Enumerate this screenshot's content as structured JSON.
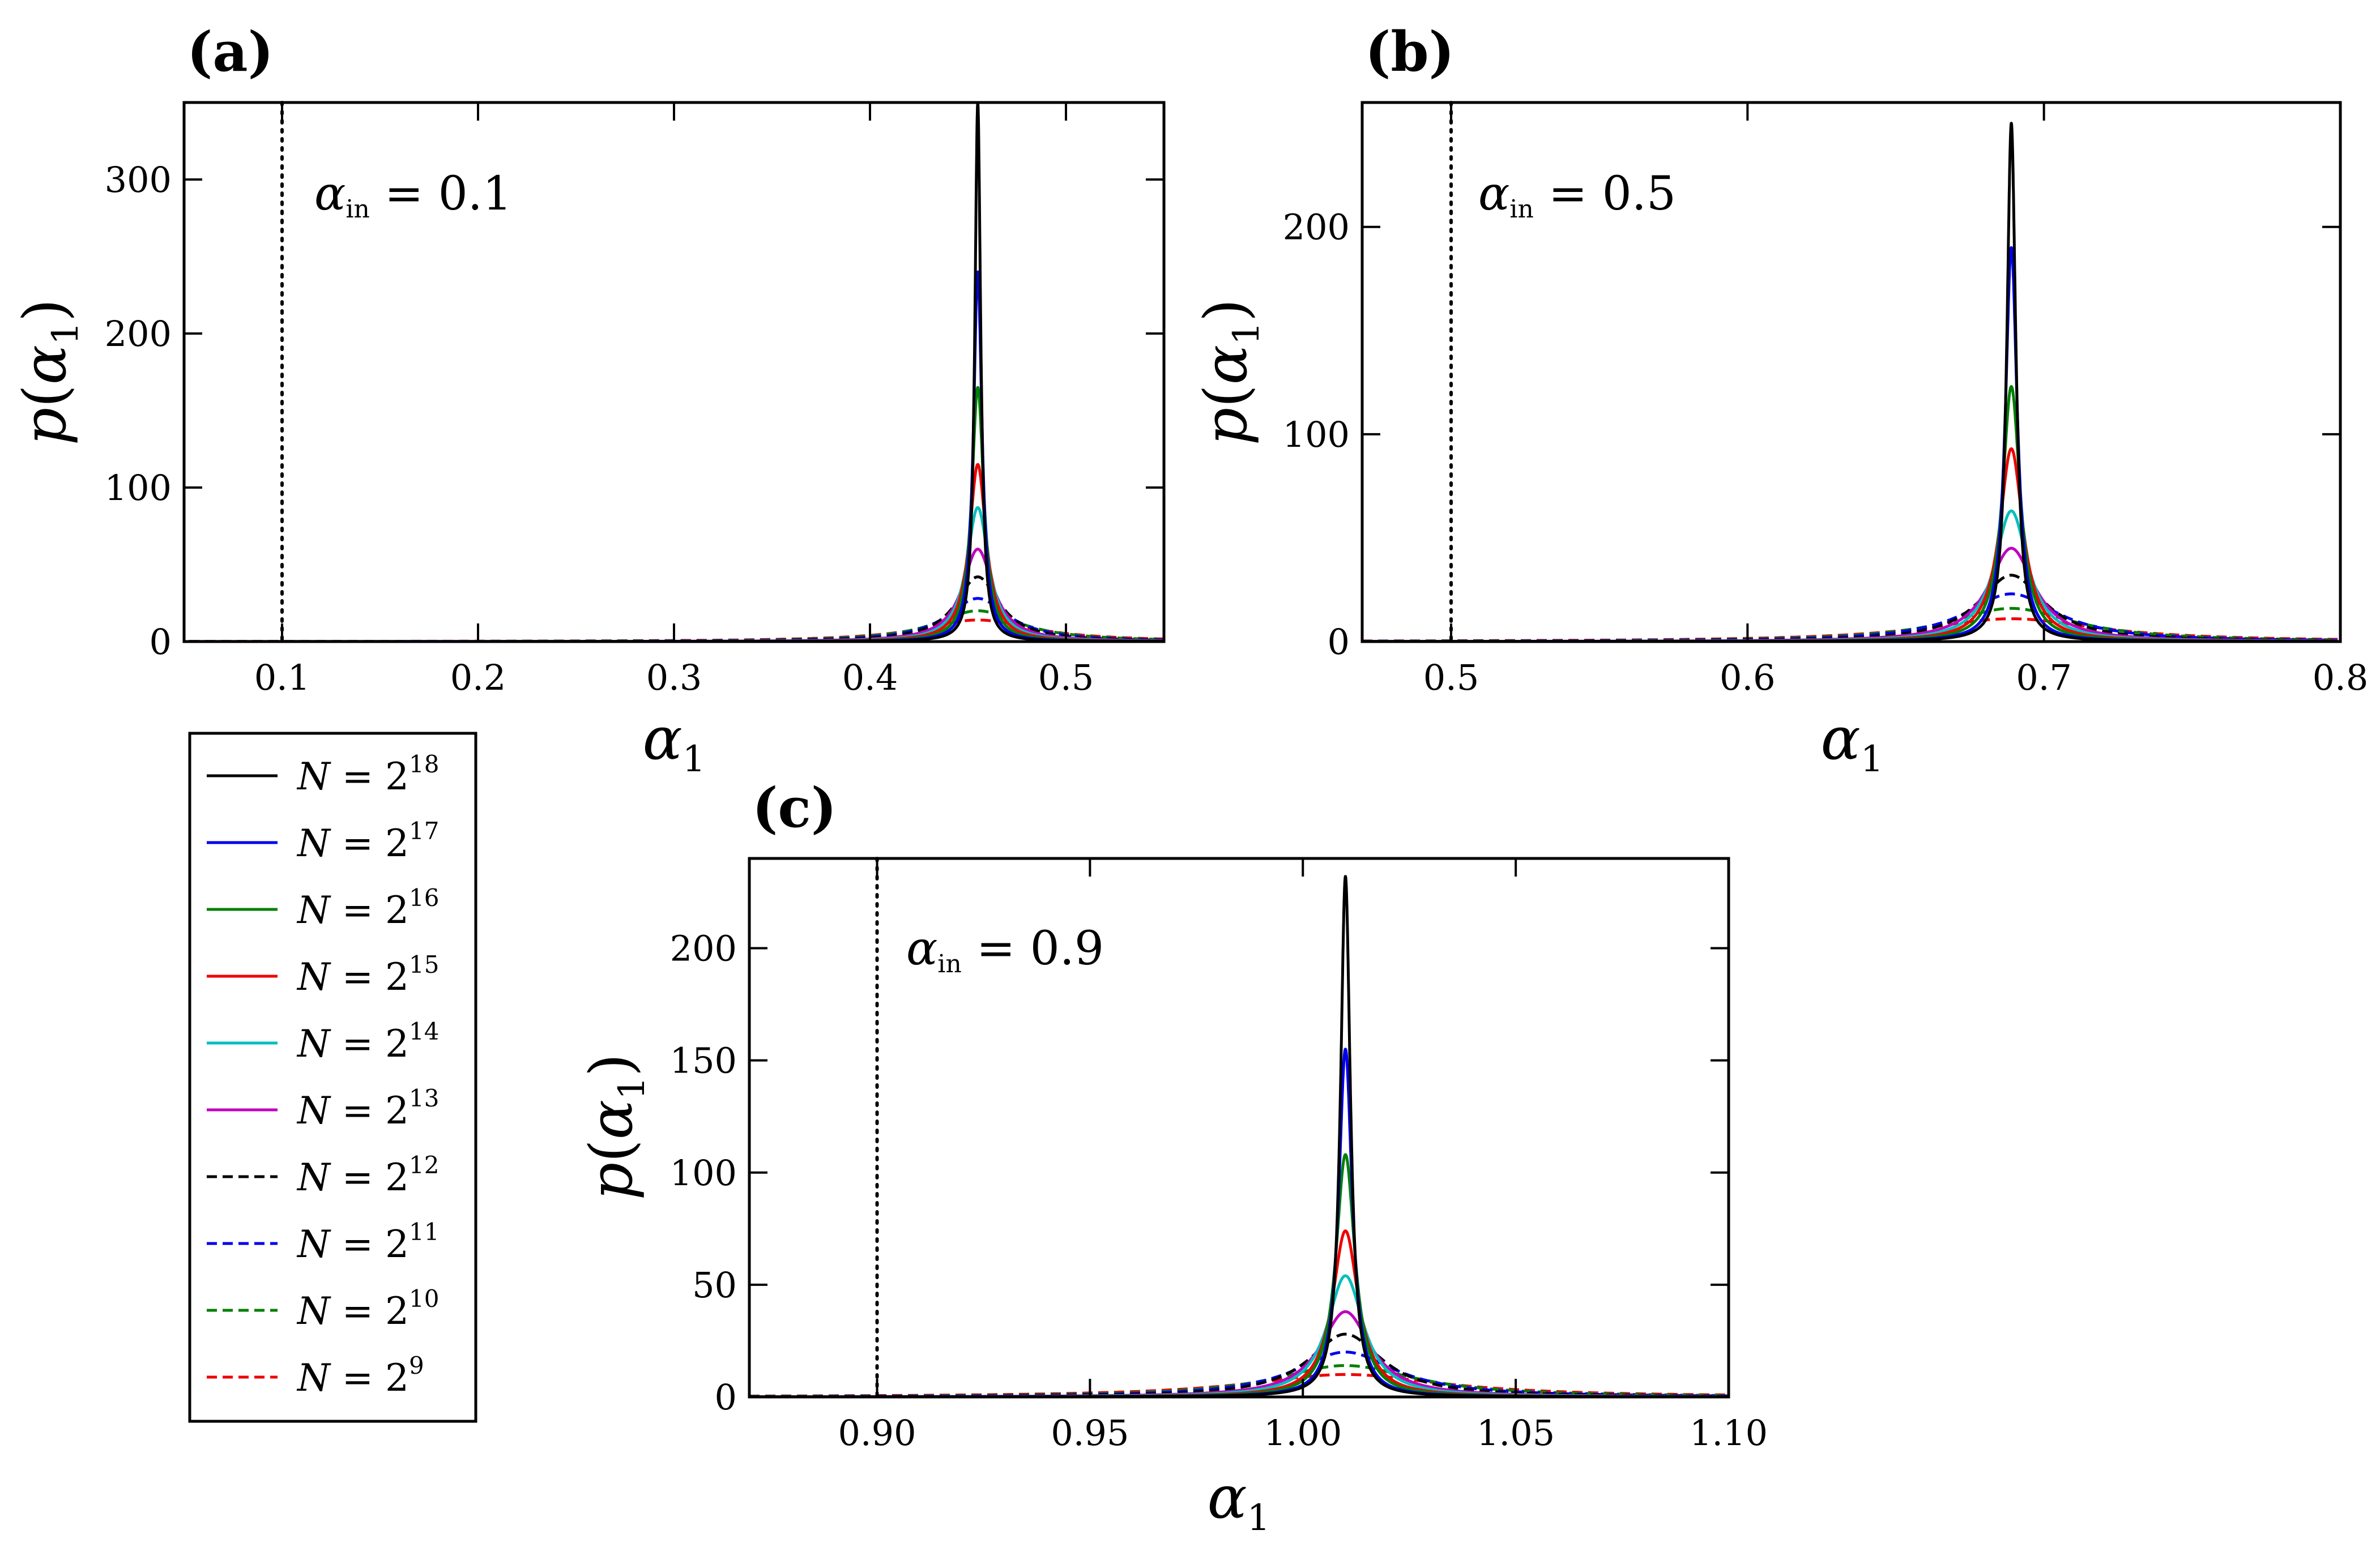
{
  "legend": {
    "entries": [
      {
        "label": "N = 2",
        "exp": "18",
        "color": "#000000",
        "dash": "solid"
      },
      {
        "label": "N = 2",
        "exp": "17",
        "color": "#0000ee",
        "dash": "solid"
      },
      {
        "label": "N = 2",
        "exp": "16",
        "color": "#008000",
        "dash": "solid"
      },
      {
        "label": "N = 2",
        "exp": "15",
        "color": "#ee0000",
        "dash": "solid"
      },
      {
        "label": "N = 2",
        "exp": "14",
        "color": "#00bfbf",
        "dash": "solid"
      },
      {
        "label": "N = 2",
        "exp": "13",
        "color": "#bf00bf",
        "dash": "solid"
      },
      {
        "label": "N = 2",
        "exp": "12",
        "color": "#000000",
        "dash": "dashed"
      },
      {
        "label": "N = 2",
        "exp": "11",
        "color": "#0000ee",
        "dash": "dashed"
      },
      {
        "label": "N = 2",
        "exp": "10",
        "color": "#008000",
        "dash": "dashed"
      },
      {
        "label": "N = 2",
        "exp": "9",
        "color": "#ee0000",
        "dash": "dashed"
      }
    ]
  },
  "chart_data": [
    {
      "id": "a",
      "type": "line",
      "panel_label": "(a)",
      "title": "",
      "annotation": {
        "symbol": "α",
        "sub": "in",
        "rest": " = 0.1"
      },
      "xlabel": {
        "symbol": "α",
        "sub": "1"
      },
      "ylabel": {
        "prefix": "p(",
        "symbol": "α",
        "sub": "1",
        "suffix": ")"
      },
      "xlim": [
        0.05,
        0.55
      ],
      "ylim": [
        0,
        350
      ],
      "xticks": [
        0.1,
        0.2,
        0.3,
        0.4,
        0.5
      ],
      "xtick_labels": [
        "0.1",
        "0.2",
        "0.3",
        "0.4",
        "0.5"
      ],
      "yticks": [
        0,
        100,
        200,
        300
      ],
      "ytick_labels": [
        "0",
        "100",
        "200",
        "300"
      ],
      "vline": 0.1,
      "center": 0.455,
      "series": [
        {
          "name": "N = 2^18",
          "peak": 350,
          "width": 0.0018
        },
        {
          "name": "N = 2^17",
          "peak": 240,
          "width": 0.0026
        },
        {
          "name": "N = 2^16",
          "peak": 165,
          "width": 0.0037
        },
        {
          "name": "N = 2^15",
          "peak": 115,
          "width": 0.0052
        },
        {
          "name": "N = 2^14",
          "peak": 87,
          "width": 0.0068
        },
        {
          "name": "N = 2^13",
          "peak": 60,
          "width": 0.0095
        },
        {
          "name": "N = 2^12",
          "peak": 42,
          "width": 0.0135
        },
        {
          "name": "N = 2^11",
          "peak": 28,
          "width": 0.019
        },
        {
          "name": "N = 2^10",
          "peak": 20,
          "width": 0.026
        },
        {
          "name": "N = 2^9",
          "peak": 14,
          "width": 0.035
        }
      ]
    },
    {
      "id": "b",
      "type": "line",
      "panel_label": "(b)",
      "title": "",
      "annotation": {
        "symbol": "α",
        "sub": "in",
        "rest": " = 0.5"
      },
      "xlabel": {
        "symbol": "α",
        "sub": "1"
      },
      "ylabel": {
        "prefix": "p(",
        "symbol": "α",
        "sub": "1",
        "suffix": ")"
      },
      "xlim": [
        0.47,
        0.8
      ],
      "ylim": [
        0,
        260
      ],
      "xticks": [
        0.5,
        0.6,
        0.7,
        0.8
      ],
      "xtick_labels": [
        "0.5",
        "0.6",
        "0.7",
        "0.8"
      ],
      "yticks": [
        0,
        100,
        200
      ],
      "ytick_labels": [
        "0",
        "100",
        "200"
      ],
      "vline": 0.5,
      "center": 0.689,
      "series": [
        {
          "name": "N = 2^18",
          "peak": 250,
          "width": 0.0018
        },
        {
          "name": "N = 2^17",
          "peak": 190,
          "width": 0.0024
        },
        {
          "name": "N = 2^16",
          "peak": 123,
          "width": 0.0036
        },
        {
          "name": "N = 2^15",
          "peak": 93,
          "width": 0.0048
        },
        {
          "name": "N = 2^14",
          "peak": 63,
          "width": 0.0068
        },
        {
          "name": "N = 2^13",
          "peak": 45,
          "width": 0.0095
        },
        {
          "name": "N = 2^12",
          "peak": 32,
          "width": 0.0135
        },
        {
          "name": "N = 2^11",
          "peak": 23,
          "width": 0.019
        },
        {
          "name": "N = 2^10",
          "peak": 16,
          "width": 0.026
        },
        {
          "name": "N = 2^9",
          "peak": 11,
          "width": 0.036
        }
      ]
    },
    {
      "id": "c",
      "type": "line",
      "panel_label": "(c)",
      "title": "",
      "annotation": {
        "symbol": "α",
        "sub": "in",
        "rest": " = 0.9"
      },
      "xlabel": {
        "symbol": "α",
        "sub": "1"
      },
      "ylabel": {
        "prefix": "p(",
        "symbol": "α",
        "sub": "1",
        "suffix": ")"
      },
      "xlim": [
        0.87,
        1.1
      ],
      "ylim": [
        0,
        240
      ],
      "xticks": [
        0.9,
        0.95,
        1.0,
        1.05,
        1.1
      ],
      "xtick_labels": [
        "0.90",
        "0.95",
        "1.00",
        "1.05",
        "1.10"
      ],
      "yticks": [
        0,
        50,
        100,
        150,
        200
      ],
      "ytick_labels": [
        "0",
        "50",
        "100",
        "150",
        "200"
      ],
      "vline": 0.9,
      "center": 1.01,
      "series": [
        {
          "name": "N = 2^18",
          "peak": 232,
          "width": 0.0014
        },
        {
          "name": "N = 2^17",
          "peak": 155,
          "width": 0.0019
        },
        {
          "name": "N = 2^16",
          "peak": 108,
          "width": 0.0027
        },
        {
          "name": "N = 2^15",
          "peak": 74,
          "width": 0.0037
        },
        {
          "name": "N = 2^14",
          "peak": 54,
          "width": 0.0052
        },
        {
          "name": "N = 2^13",
          "peak": 38,
          "width": 0.0072
        },
        {
          "name": "N = 2^12",
          "peak": 28,
          "width": 0.0105
        },
        {
          "name": "N = 2^11",
          "peak": 20,
          "width": 0.0145
        },
        {
          "name": "N = 2^10",
          "peak": 14,
          "width": 0.02
        },
        {
          "name": "N = 2^9",
          "peak": 10,
          "width": 0.028
        }
      ]
    }
  ]
}
